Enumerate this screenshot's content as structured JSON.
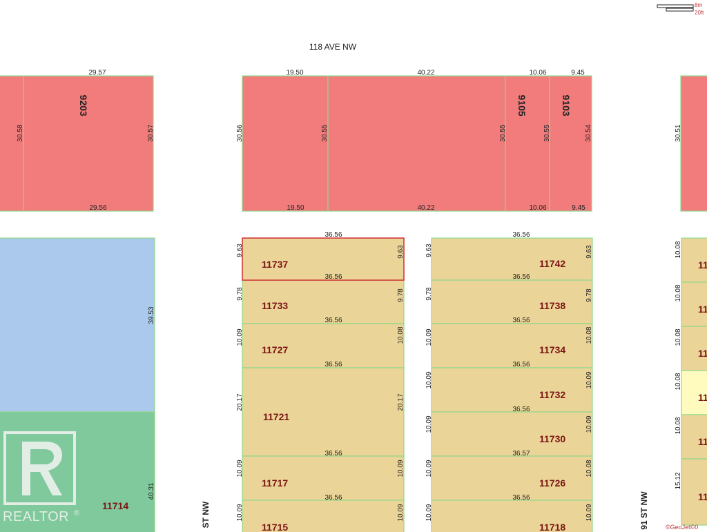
{
  "colors": {
    "commercial": "#f27c7c",
    "residential": "#ebd497",
    "institutional": "#aac9ec",
    "park": "#7fc99c",
    "highlight": "#fffbbf",
    "parcel_border": "#8fd88c",
    "selected_border": "#d23a3a",
    "lot_number_text": "#7a1414"
  },
  "map": {
    "street_118_ave": "118 AVE NW",
    "street_left_st": "ST NW",
    "street_91_st": "91 ST NW",
    "scale_metric": "8m",
    "scale_imperial": "20ft",
    "copyright": "©GeoJet©0",
    "selected_lot": "11737"
  },
  "lots": {
    "l9203": "9203",
    "l9105": "9105",
    "l9103": "9103",
    "l11737": "11737",
    "l11733": "11733",
    "l11727": "11727",
    "l11721": "11721",
    "l11717": "11717",
    "l11715": "11715",
    "l11742": "11742",
    "l11738": "11738",
    "l11734": "11734",
    "l11732": "11732",
    "l11730": "11730",
    "l11726": "11726",
    "l11718": "11718",
    "l11714": "11714",
    "rp1": "11",
    "rp2": "11",
    "rp3": "11",
    "rp4": "11",
    "rp5": "11",
    "rp6": "11"
  },
  "dims": {
    "top": {
      "a": "29.57",
      "b": "19.50",
      "c": "40.22",
      "d": "10.06",
      "e": "9.45"
    },
    "bottom": {
      "a": "29.56",
      "b": "19.50",
      "c": "40.22",
      "d": "10.06",
      "e": "9.45"
    },
    "side": {
      "s1": "30.58",
      "s2": "30.57",
      "s3": "30.56",
      "s4": "30.55",
      "s5": "30.55",
      "s6": "30.55",
      "s7": "30.54",
      "s8": "30.51"
    },
    "lotw": {
      "w1": "36.56",
      "w2": "36.56",
      "w3": "36.56",
      "w4": "36.56",
      "w5": "36.56",
      "w6": "36.56",
      "w7": "36.56",
      "w8": "36.57",
      "w9": "36.56"
    },
    "depthL": {
      "d1": "9.63",
      "d2": "9.78",
      "d3": "10.09",
      "d4": "20.17",
      "d5": "10.09",
      "d6": "10.09"
    },
    "depthLR": {
      "d1": "9.63",
      "d2": "9.78",
      "d3": "10.08",
      "d4": "20.17",
      "d5": "10.09",
      "d6": "10.09"
    },
    "depthM": {
      "d1": "9.63",
      "d2": "9.78",
      "d3": "10.09",
      "d4": "10.09",
      "d5": "10.09",
      "d6": "10.09",
      "d7": "10.09"
    },
    "depthMR": {
      "d1": "9.63",
      "d2": "9.78",
      "d3": "10.08",
      "d4": "10.09",
      "d5": "10.09",
      "d6": "10.08",
      "d7": "10.09"
    },
    "depthR": {
      "d1": "10.08",
      "d2": "10.08",
      "d3": "10.08",
      "d4": "10.08",
      "d5": "10.08",
      "d6": "15.12"
    },
    "west": {
      "w": "39.53",
      "p": "40.31"
    }
  },
  "watermark": {
    "brand": "REALTOR",
    "mark": "®"
  }
}
